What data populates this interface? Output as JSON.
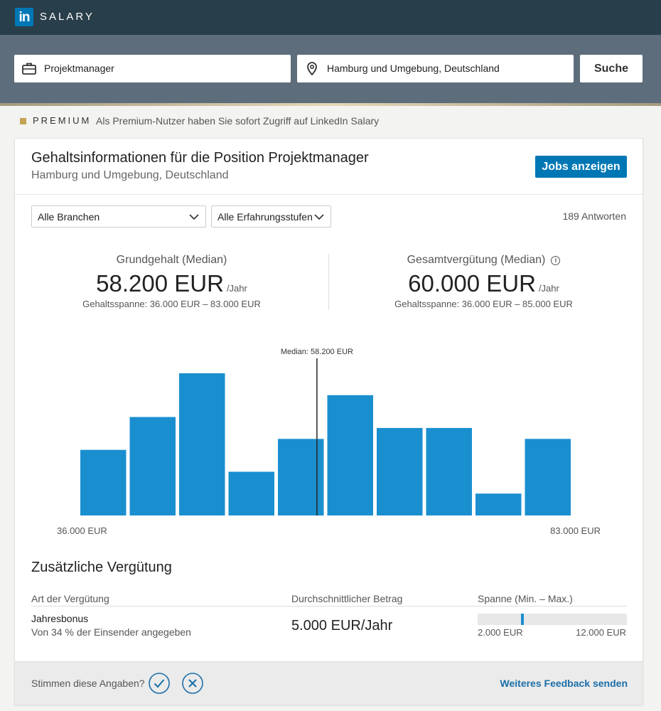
{
  "brand": {
    "logo_text": "in",
    "product": "SALARY",
    "accent_color": "#0077b5"
  },
  "search": {
    "job_value": "Projektmanager",
    "location_value": "Hamburg und Umgebung, Deutschland",
    "button_label": "Suche"
  },
  "premium": {
    "label": "PREMIUM",
    "text": "Als Premium-Nutzer haben Sie sofort Zugriff auf LinkedIn Salary"
  },
  "header": {
    "title": "Gehaltsinformationen für die Position Projektmanager",
    "subtitle": "Hamburg und Umgebung, Deutschland",
    "jobs_button": "Jobs anzeigen"
  },
  "filters": {
    "industry": "Alle Branchen",
    "experience": "Alle Erfahrungsstufen",
    "responses": "189 Antworten"
  },
  "stats": {
    "base": {
      "label": "Grundgehalt (Median)",
      "value": "58.200 EUR",
      "period": "/Jahr",
      "range": "Gehaltsspanne: 36.000 EUR – 83.000 EUR"
    },
    "total": {
      "label": "Gesamtvergütung (Median)",
      "value": "60.000 EUR",
      "period": "/Jahr",
      "range": "Gehaltsspanne: 36.000 EUR – 85.000 EUR"
    }
  },
  "chart_data": {
    "type": "bar",
    "values": [
      6,
      9,
      13,
      4,
      7,
      11,
      8,
      8,
      2,
      7
    ],
    "ylim": [
      0,
      13
    ],
    "x_min_label": "36.000 EUR",
    "x_max_label": "83.000 EUR",
    "median_label": "Median: 58.200 EUR",
    "median_value": 58200,
    "x_range": [
      36000,
      83000
    ],
    "bar_color": "#1a8fd0"
  },
  "additional": {
    "title": "Zusätzliche Vergütung",
    "headers": [
      "Art der Vergütung",
      "Durchschnittlicher Betrag",
      "Spanne (Min. – Max.)"
    ],
    "rows": [
      {
        "name": "Jahresbonus",
        "note": "Von 34 % der Einsender angegeben",
        "amount": "5.000 EUR/Jahr",
        "min": "2.000 EUR",
        "max": "12.000 EUR",
        "average_fraction": 0.3
      }
    ]
  },
  "feedback": {
    "question": "Stimmen diese Angaben?",
    "link": "Weiteres Feedback senden"
  }
}
